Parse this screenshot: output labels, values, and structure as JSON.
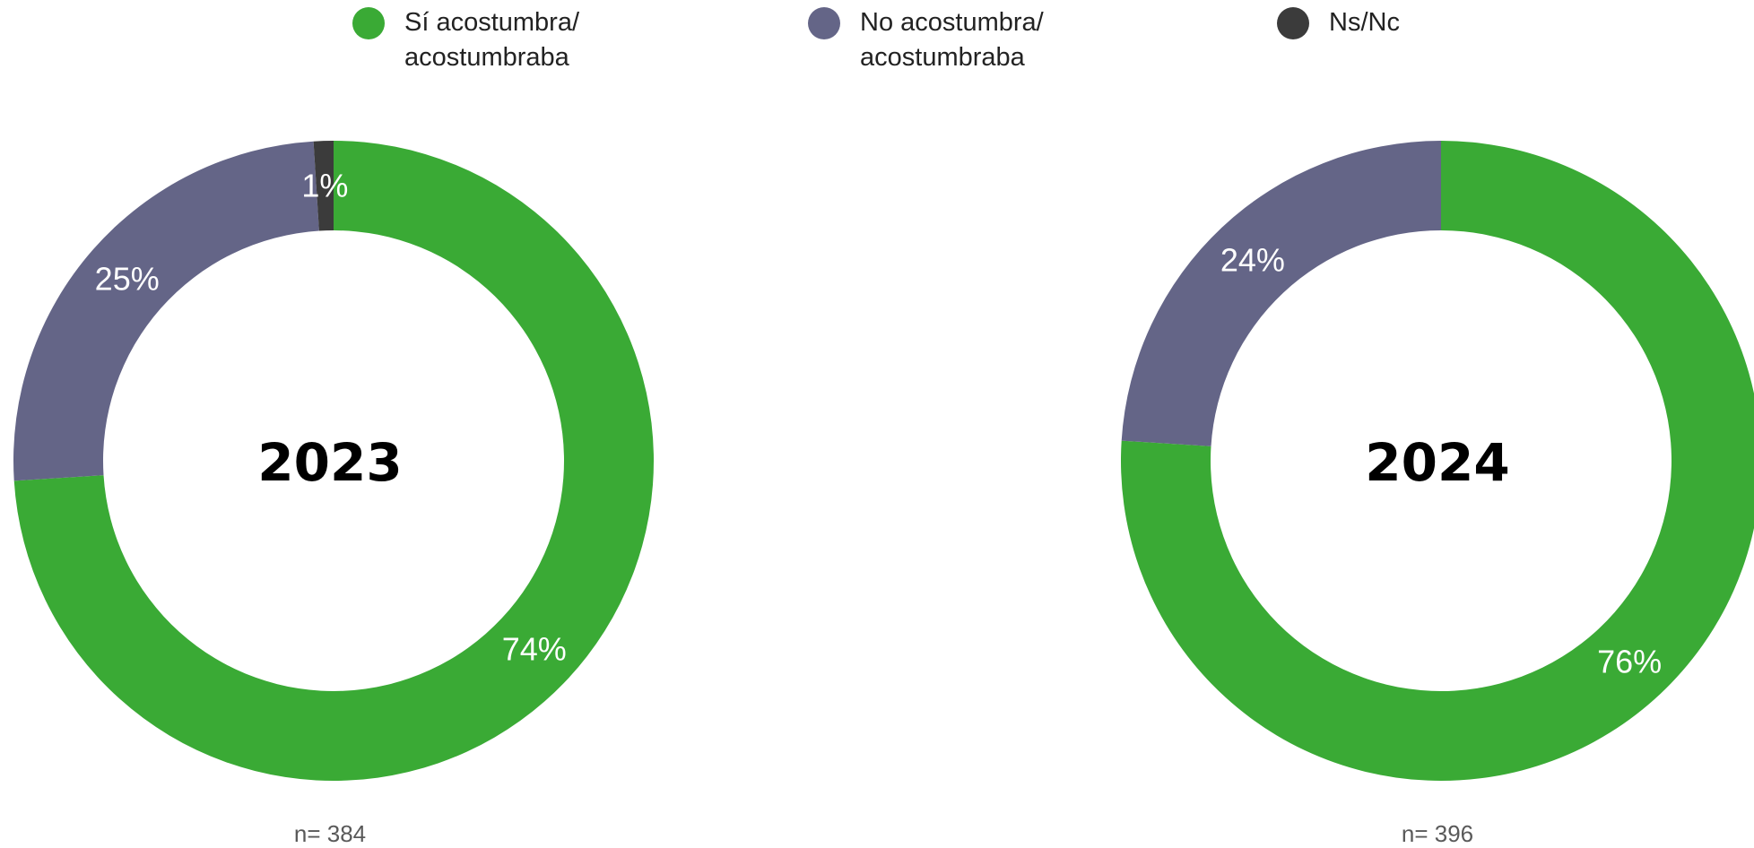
{
  "colors": {
    "si": "#3aaa35",
    "no": "#646587",
    "nsnc": "#3b3b3b",
    "background": "#ffffff",
    "center_text": "#000000",
    "slice_text": "#ffffff",
    "n_text": "#595959"
  },
  "legend": [
    {
      "label": "Sí acostumbra/\nacostumbraba",
      "color": "#3aaa35"
    },
    {
      "label": "No acostumbra/\nacostumbraba",
      "color": "#646587"
    },
    {
      "label": "Ns/Nc",
      "color": "#3b3b3b"
    }
  ],
  "chart_data": [
    {
      "type": "pie",
      "style": "donut",
      "center_label": "2023",
      "n_label": "n= 384",
      "categories": [
        "Sí acostumbra/ acostumbraba",
        "No acostumbra/ acostumbraba",
        "Ns/Nc"
      ],
      "values": [
        74,
        25,
        1
      ],
      "value_labels": [
        "74%",
        "25%",
        "1%"
      ]
    },
    {
      "type": "pie",
      "style": "donut",
      "center_label": "2024",
      "n_label": "n= 396",
      "categories": [
        "Sí acostumbra/ acostumbraba",
        "No acostumbra/ acostumbraba",
        "Ns/Nc"
      ],
      "values": [
        76,
        24,
        0
      ],
      "value_labels": [
        "76%",
        "24%",
        ""
      ]
    }
  ]
}
